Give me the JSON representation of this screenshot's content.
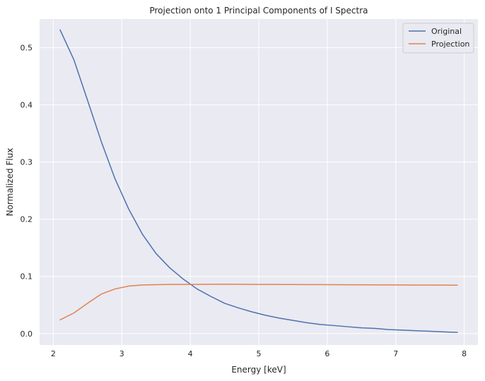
{
  "chart_data": {
    "type": "line",
    "title": "Projection onto 1 Principal Components of I Spectra",
    "xlabel": "Energy [keV]",
    "ylabel": "Normalized Flux",
    "xlim": [
      1.8,
      8.2
    ],
    "ylim": [
      -0.02,
      0.55
    ],
    "xticks": [
      2,
      3,
      4,
      5,
      6,
      7,
      8
    ],
    "xtick_labels": [
      "2",
      "3",
      "4",
      "5",
      "6",
      "7",
      "8"
    ],
    "yticks": [
      0.0,
      0.1,
      0.2,
      0.3,
      0.4,
      0.5
    ],
    "ytick_labels": [
      "0.0",
      "0.1",
      "0.2",
      "0.3",
      "0.4",
      "0.5"
    ],
    "grid": true,
    "legend_position": "top-right",
    "series": [
      {
        "name": "Original",
        "color": "#4c72b0",
        "x": [
          2.1,
          2.3,
          2.5,
          2.7,
          2.9,
          3.1,
          3.3,
          3.5,
          3.7,
          3.9,
          4.1,
          4.3,
          4.5,
          4.7,
          4.9,
          5.1,
          5.3,
          5.5,
          5.7,
          5.9,
          6.1,
          6.3,
          6.5,
          6.7,
          6.9,
          7.1,
          7.3,
          7.5,
          7.7,
          7.9
        ],
        "values": [
          0.531,
          0.479,
          0.408,
          0.336,
          0.271,
          0.218,
          0.174,
          0.14,
          0.115,
          0.095,
          0.078,
          0.065,
          0.053,
          0.045,
          0.038,
          0.032,
          0.027,
          0.023,
          0.019,
          0.016,
          0.014,
          0.012,
          0.01,
          0.009,
          0.007,
          0.006,
          0.005,
          0.004,
          0.003,
          0.002
        ]
      },
      {
        "name": "Projection",
        "color": "#dd8452",
        "x": [
          2.1,
          2.3,
          2.5,
          2.7,
          2.9,
          3.1,
          3.3,
          3.5,
          3.7,
          3.9,
          4.1,
          4.3,
          4.5,
          4.7,
          4.9,
          5.1,
          5.3,
          5.5,
          5.7,
          5.9,
          6.1,
          6.3,
          6.5,
          6.7,
          6.9,
          7.1,
          7.3,
          7.5,
          7.7,
          7.9
        ],
        "values": [
          0.024,
          0.036,
          0.053,
          0.069,
          0.078,
          0.083,
          0.085,
          0.0855,
          0.086,
          0.086,
          0.086,
          0.0862,
          0.0862,
          0.0862,
          0.086,
          0.086,
          0.0858,
          0.0858,
          0.0857,
          0.0856,
          0.0855,
          0.0854,
          0.0853,
          0.0852,
          0.0851,
          0.085,
          0.0849,
          0.0848,
          0.0847,
          0.0846
        ]
      }
    ]
  }
}
